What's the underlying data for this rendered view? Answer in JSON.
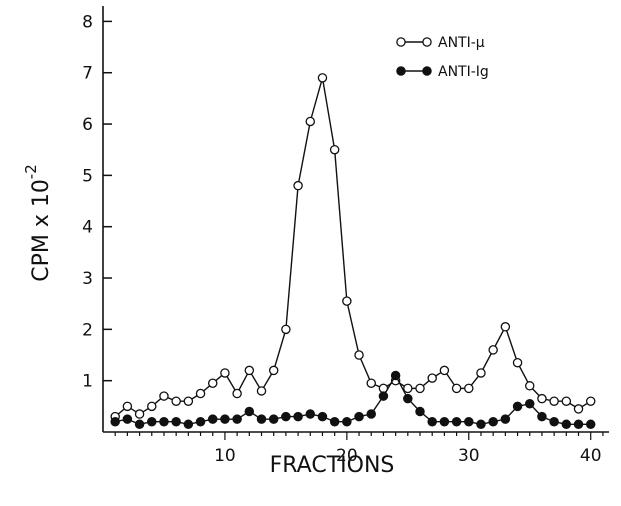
{
  "chart_data": {
    "type": "line",
    "title": "",
    "xlabel": "FRACTIONS",
    "ylabel_main": "CPM x 10",
    "ylabel_exponent": "-2",
    "xlim": [
      0,
      41.5
    ],
    "ylim": [
      0,
      8.3
    ],
    "xticks": [
      10,
      20,
      30,
      40
    ],
    "yticks": [
      1,
      2,
      3,
      4,
      5,
      6,
      7,
      8
    ],
    "grid": false,
    "legend_position": "top-right",
    "series": [
      {
        "name": "ANTI-μ",
        "marker": "open-circle",
        "x": [
          1,
          2,
          3,
          4,
          5,
          6,
          7,
          8,
          9,
          10,
          11,
          12,
          13,
          14,
          15,
          16,
          17,
          18,
          19,
          20,
          21,
          22,
          23,
          24,
          25,
          26,
          27,
          28,
          29,
          30,
          31,
          32,
          33,
          34,
          35,
          36,
          37,
          38,
          39,
          40
        ],
        "values": [
          0.3,
          0.5,
          0.35,
          0.5,
          0.7,
          0.6,
          0.6,
          0.75,
          0.95,
          1.15,
          0.75,
          1.2,
          0.8,
          1.2,
          2.0,
          4.8,
          6.05,
          6.9,
          5.5,
          2.55,
          1.5,
          0.95,
          0.85,
          1.0,
          0.85,
          0.85,
          1.05,
          1.2,
          0.85,
          0.85,
          1.15,
          1.6,
          2.05,
          1.35,
          0.9,
          0.65,
          0.6,
          0.6,
          0.45,
          0.6
        ]
      },
      {
        "name": "ANTI-Ig",
        "marker": "filled-circle",
        "x": [
          1,
          2,
          3,
          4,
          5,
          6,
          7,
          8,
          9,
          10,
          11,
          12,
          13,
          14,
          15,
          16,
          17,
          18,
          19,
          20,
          21,
          22,
          23,
          24,
          25,
          26,
          27,
          28,
          29,
          30,
          31,
          32,
          33,
          34,
          35,
          36,
          37,
          38,
          39,
          40
        ],
        "values": [
          0.2,
          0.25,
          0.15,
          0.2,
          0.2,
          0.2,
          0.15,
          0.2,
          0.25,
          0.25,
          0.25,
          0.4,
          0.25,
          0.25,
          0.3,
          0.3,
          0.35,
          0.3,
          0.2,
          0.2,
          0.3,
          0.35,
          0.7,
          1.1,
          0.65,
          0.4,
          0.2,
          0.2,
          0.2,
          0.2,
          0.15,
          0.2,
          0.25,
          0.5,
          0.55,
          0.3,
          0.2,
          0.15,
          0.15,
          0.15
        ]
      }
    ]
  }
}
